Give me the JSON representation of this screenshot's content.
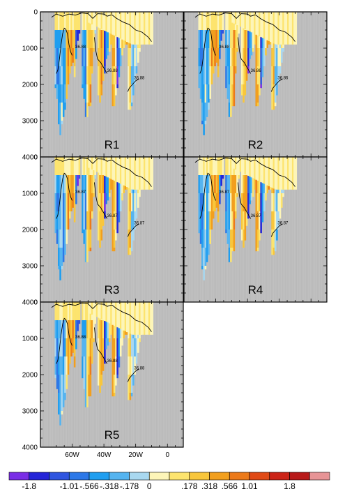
{
  "chart_data": {
    "type": "heatmap",
    "panels": [
      {
        "name": "R1",
        "contour_labels": [
          "36.88",
          "36.88",
          "36.88"
        ]
      },
      {
        "name": "R2",
        "contour_labels": [
          "36.88",
          "36.86",
          "36.86"
        ]
      },
      {
        "name": "R3",
        "contour_labels": [
          "36.87",
          "36.87",
          "36.87"
        ]
      },
      {
        "name": "R4",
        "contour_labels": [
          "36.87",
          "36.87",
          "36.87"
        ]
      },
      {
        "name": "R5",
        "contour_labels": [
          "36.88",
          "36.88",
          "36.88"
        ]
      }
    ],
    "y_axis": {
      "ticks": [
        0,
        1000,
        2000,
        3000,
        4000
      ],
      "range": [
        0,
        4000
      ],
      "reversed": true
    },
    "x_axis": {
      "ticks": [
        "60W",
        "40W",
        "20W",
        "0"
      ],
      "tick_lon": [
        -60,
        -40,
        -20,
        0
      ],
      "range": [
        -80,
        10
      ]
    },
    "colorbar": {
      "colors": [
        "#7a2ee6",
        "#2525d8",
        "#2f55e0",
        "#2c78e8",
        "#1f9ef0",
        "#55b4f0",
        "#a9d8f0",
        "#fdf5b8",
        "#fde46e",
        "#f8c63c",
        "#f29f1e",
        "#ec7a1a",
        "#e04a16",
        "#cc2418",
        "#b81a1a",
        "#e79496"
      ],
      "labels": [
        "-1.8",
        "-1.01",
        "-.566",
        "-.318",
        "-.178",
        "0",
        ".178",
        ".318",
        ".566",
        "1.01",
        "1.8"
      ]
    },
    "background_color": "#c0c0c0"
  }
}
